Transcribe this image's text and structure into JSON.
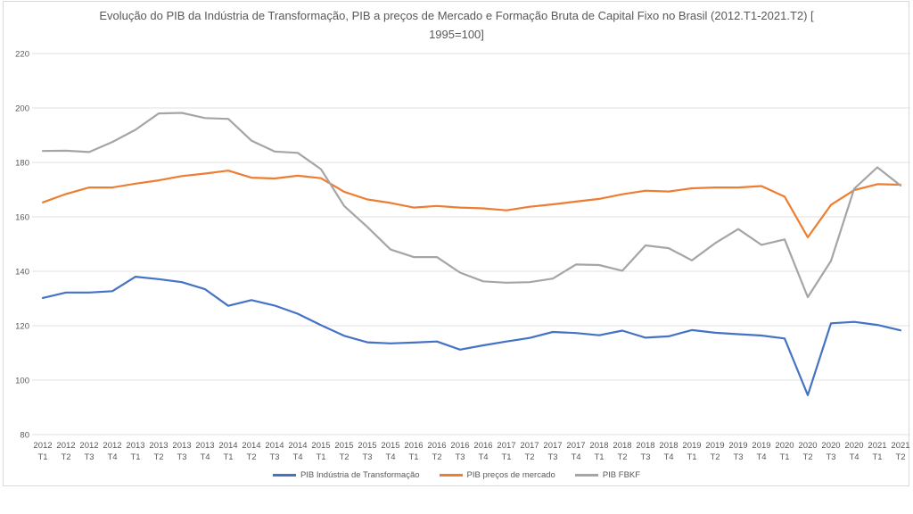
{
  "title": "Evolução do PIB da Indústria de Transformação, PIB a preços de Mercado e Formação Bruta de Capital Fixo no Brasil (2012.T1-2021.T2) [ 1995=100]",
  "colors": {
    "axis_text": "#595959",
    "gridline": "#e2e2e2",
    "border": "#d9d9d9"
  },
  "chart_data": {
    "type": "line",
    "title": "Evolução do PIB da Indústria de Transformação, PIB a preços de Mercado e Formação Bruta de Capital Fixo no Brasil (2012.T1-2021.T2) [ 1995=100]",
    "xlabel": "",
    "ylabel": "",
    "ylim": [
      80,
      220
    ],
    "y_ticks": [
      220,
      200,
      180,
      160,
      140,
      120,
      100,
      80
    ],
    "grid": true,
    "legend_position": "bottom",
    "categories": [
      "2012 T1",
      "2012 T2",
      "2012 T3",
      "2012 T4",
      "2013 T1",
      "2013 T2",
      "2013 T3",
      "2013 T4",
      "2014 T1",
      "2014 T2",
      "2014 T3",
      "2014 T4",
      "2015 T1",
      "2015 T2",
      "2015 T3",
      "2015 T4",
      "2016 T1",
      "2016 T2",
      "2016 T3",
      "2016 T4",
      "2017 T1",
      "2017 T2",
      "2017 T3",
      "2017 T4",
      "2018 T1",
      "2018 T2",
      "2018 T3",
      "2018 T4",
      "2019 T1",
      "2019 T2",
      "2019 T3",
      "2019 T4",
      "2020 T1",
      "2020 T2",
      "2020 T3",
      "2020 T4",
      "2021 T1",
      "2021 T2"
    ],
    "series": [
      {
        "name": "PIB Indústria de Transformação",
        "color": "#4472C4",
        "values": [
          130.2,
          132.2,
          132.2,
          132.7,
          138.0,
          137.1,
          136.0,
          133.4,
          127.3,
          129.4,
          127.4,
          124.4,
          120.2,
          116.3,
          113.9,
          113.5,
          113.8,
          114.2,
          111.2,
          112.8,
          114.2,
          115.5,
          117.7,
          117.3,
          116.5,
          118.2,
          115.6,
          116.1,
          118.4,
          117.4,
          116.9,
          116.4,
          115.3,
          94.5,
          120.9,
          121.4,
          120.3,
          118.3
        ]
      },
      {
        "name": "PIB preços de mercado",
        "color": "#ED7D31",
        "values": [
          165.3,
          168.4,
          170.8,
          170.8,
          172.2,
          173.4,
          175.0,
          175.9,
          177.0,
          174.4,
          174.1,
          175.1,
          174.2,
          169.2,
          166.4,
          165.1,
          163.4,
          164.0,
          163.4,
          163.1,
          162.4,
          163.7,
          164.6,
          165.6,
          166.6,
          168.3,
          169.6,
          169.3,
          170.5,
          170.8,
          170.8,
          171.3,
          167.4,
          152.5,
          164.4,
          169.8,
          172.0,
          171.8
        ]
      },
      {
        "name": "PIB FBKF",
        "color": "#A5A5A5",
        "values": [
          184.2,
          184.3,
          183.8,
          187.5,
          192.0,
          198.0,
          198.2,
          196.3,
          196.0,
          188.0,
          184.0,
          183.5,
          177.5,
          164.0,
          156.3,
          148.0,
          145.2,
          145.2,
          139.5,
          136.3,
          135.8,
          136.0,
          137.3,
          142.5,
          142.3,
          140.2,
          149.5,
          148.5,
          144.0,
          150.3,
          155.5,
          149.7,
          151.7,
          130.5,
          143.8,
          170.3,
          178.2,
          171.5
        ]
      }
    ]
  }
}
